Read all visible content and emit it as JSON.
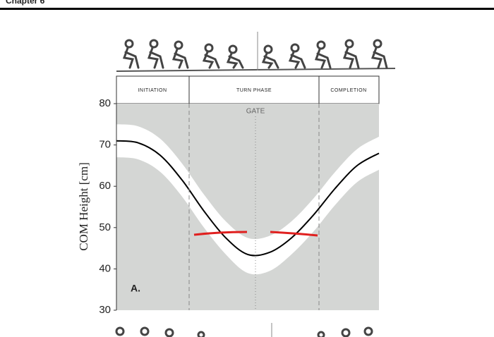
{
  "chart_data": {
    "type": "line",
    "header": "Chapter 6",
    "ylabel": "COM Height [cm]",
    "phases": [
      "INITIATION",
      "TURN PHASE",
      "COMPLETION"
    ],
    "gate_label": "GATE",
    "panel_label": "A.",
    "categories": [
      null,
      null,
      null,
      null,
      null,
      null,
      null,
      null,
      null,
      null,
      null,
      null,
      null
    ],
    "series": [
      {
        "color": "#000000",
        "values": [
          71,
          70.5,
          67.5,
          61.5,
          54,
          47.5,
          43.5,
          44,
          47.5,
          53,
          59.5,
          65,
          68
        ]
      },
      {
        "color": "#ffffff",
        "values": [
          75,
          74.5,
          71.5,
          65.5,
          58,
          51.5,
          47.5,
          48,
          51.5,
          57,
          63.5,
          69,
          72
        ]
      },
      {
        "color": "#ffffff",
        "values": [
          67,
          66.5,
          63.5,
          57.5,
          50,
          43.5,
          39,
          39.5,
          43.5,
          49,
          55.5,
          61,
          64
        ]
      }
    ],
    "ylim": [
      30,
      80
    ],
    "yticks": [
      30,
      40,
      50,
      60,
      70,
      80
    ],
    "background": "#d4d6d4"
  }
}
